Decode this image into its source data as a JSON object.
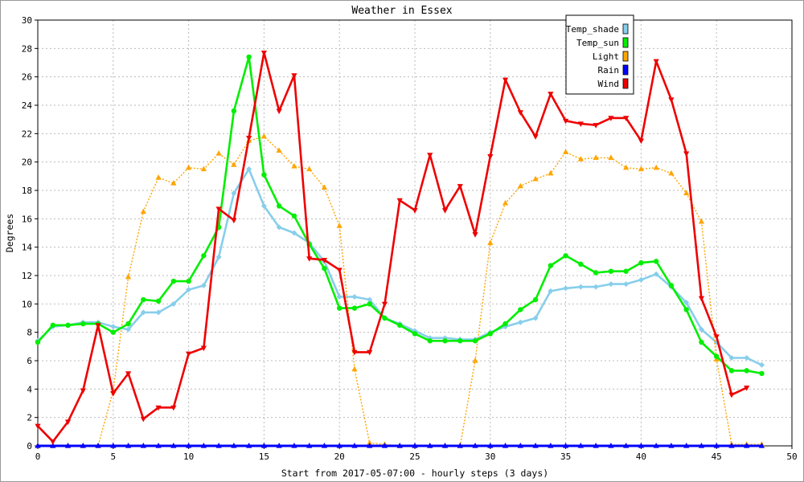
{
  "chart_data": {
    "type": "line",
    "title": "Weather in Essex",
    "xlabel": "Start from 2017-05-07:00 - hourly steps (3 days)",
    "ylabel": "Degrees",
    "xlim": [
      0,
      50
    ],
    "ylim": [
      0,
      30
    ],
    "xticks": [
      0,
      5,
      10,
      15,
      20,
      25,
      30,
      35,
      40,
      45,
      50
    ],
    "yticks": [
      0,
      2,
      4,
      6,
      8,
      10,
      12,
      14,
      16,
      18,
      20,
      22,
      24,
      26,
      28,
      30
    ],
    "grid": true,
    "legend_position": "top-right",
    "x": [
      0,
      1,
      2,
      3,
      4,
      5,
      6,
      7,
      8,
      9,
      10,
      11,
      12,
      13,
      14,
      15,
      16,
      17,
      18,
      19,
      20,
      21,
      22,
      23,
      24,
      25,
      26,
      27,
      28,
      29,
      30,
      31,
      32,
      33,
      34,
      35,
      36,
      37,
      38,
      39,
      40,
      41,
      42,
      43,
      44,
      45,
      46,
      47,
      48
    ],
    "series": [
      {
        "name": "Temp_shade",
        "color": "#87ceeb",
        "marker": "diamond",
        "values": [
          7.4,
          8.4,
          8.5,
          8.7,
          8.7,
          8.4,
          8.2,
          9.4,
          9.4,
          10.0,
          11.0,
          11.3,
          13.3,
          17.8,
          19.5,
          16.9,
          15.4,
          15.0,
          14.3,
          13.0,
          10.5,
          10.5,
          10.3,
          9.0,
          8.6,
          8.1,
          7.6,
          7.6,
          7.5,
          7.5,
          8.0,
          8.4,
          8.7,
          9.0,
          10.9,
          11.1,
          11.2,
          11.2,
          11.4,
          11.4,
          11.7,
          12.1,
          11.2,
          10.1,
          8.2,
          7.3,
          6.2,
          6.2,
          5.7
        ]
      },
      {
        "name": "Temp_sun",
        "color": "#00ee00",
        "marker": "circle",
        "values": [
          7.3,
          8.5,
          8.5,
          8.6,
          8.6,
          8.0,
          8.6,
          10.3,
          10.2,
          11.6,
          11.6,
          13.4,
          15.4,
          23.6,
          27.4,
          19.1,
          16.9,
          16.2,
          14.2,
          12.5,
          9.7,
          9.7,
          10.0,
          9.0,
          8.5,
          7.9,
          7.4,
          7.4,
          7.4,
          7.4,
          7.9,
          8.6,
          9.6,
          10.3,
          12.7,
          13.4,
          12.8,
          12.2,
          12.3,
          12.3,
          12.9,
          13.0,
          11.3,
          9.6,
          7.3,
          6.3,
          5.3,
          5.3,
          5.1
        ]
      },
      {
        "name": "Light",
        "color": "#ffa500",
        "marker": "triangle-up",
        "dashed": true,
        "values": [
          0,
          0,
          0,
          0,
          0,
          3.9,
          11.9,
          16.5,
          18.9,
          18.5,
          19.6,
          19.5,
          20.6,
          19.8,
          21.5,
          21.8,
          20.8,
          19.7,
          19.5,
          18.2,
          15.5,
          5.4,
          0.2,
          0.1,
          0,
          0,
          0,
          0,
          0,
          6.0,
          14.3,
          17.1,
          18.3,
          18.8,
          19.2,
          20.7,
          20.2,
          20.3,
          20.3,
          19.6,
          19.5,
          19.6,
          19.2,
          17.8,
          15.8,
          6.1,
          0.1,
          0.1,
          0.1
        ]
      },
      {
        "name": "Rain",
        "color": "#0000ff",
        "marker": "triangle-up",
        "values": [
          0,
          0,
          0,
          0,
          0,
          0,
          0,
          0,
          0,
          0,
          0,
          0,
          0,
          0,
          0,
          0,
          0,
          0,
          0,
          0,
          0,
          0,
          0,
          0,
          0,
          0,
          0,
          0,
          0,
          0,
          0,
          0,
          0,
          0,
          0,
          0,
          0,
          0,
          0,
          0,
          0,
          0,
          0,
          0,
          0,
          0,
          0,
          0,
          0
        ]
      },
      {
        "name": "Wind",
        "color": "#ee0000",
        "marker": "triangle-down",
        "values": [
          1.4,
          0.3,
          1.7,
          3.9,
          8.5,
          3.7,
          5.1,
          1.9,
          2.7,
          2.7,
          6.5,
          6.9,
          16.7,
          15.9,
          21.7,
          27.7,
          23.6,
          26.1,
          13.2,
          13.1,
          12.4,
          6.6,
          6.6,
          10.0,
          17.3,
          16.6,
          20.5,
          16.6,
          18.3,
          14.9,
          20.4,
          25.8,
          23.5,
          21.8,
          24.8,
          22.9,
          22.7,
          22.6,
          23.1,
          23.1,
          21.5,
          27.1,
          24.4,
          20.6,
          10.4,
          7.7,
          3.6,
          4.1,
          null
        ]
      }
    ]
  }
}
